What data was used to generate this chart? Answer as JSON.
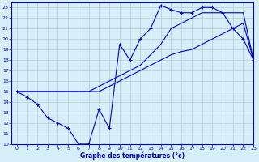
{
  "title": "Graphe des températures (°c)",
  "bg_color": "#d6eef8",
  "grid_color": "#b0ccd8",
  "line_color": "#0000cc",
  "xlim": [
    -0.5,
    23
  ],
  "ylim": [
    10,
    23.5
  ],
  "xticks": [
    0,
    1,
    2,
    3,
    4,
    5,
    6,
    7,
    8,
    9,
    10,
    11,
    12,
    13,
    14,
    15,
    16,
    17,
    18,
    19,
    20,
    21,
    22,
    23
  ],
  "yticks": [
    10,
    11,
    12,
    13,
    14,
    15,
    16,
    17,
    18,
    19,
    20,
    21,
    22,
    23
  ],
  "line1_x": [
    0,
    1,
    2,
    3,
    4,
    5,
    6,
    7,
    8,
    9,
    10,
    11,
    12,
    13,
    14,
    15,
    16,
    17,
    18,
    19,
    20,
    21,
    22,
    23
  ],
  "line1_y": [
    15,
    14.5,
    13.8,
    12.5,
    12,
    11.5,
    10,
    10,
    13.3,
    11.5,
    19.5,
    18.0,
    20,
    21,
    23.2,
    22.8,
    22.5,
    22.5,
    23,
    23,
    22.5,
    21,
    20,
    18
  ],
  "line2_x": [
    0,
    1,
    2,
    3,
    4,
    5,
    6,
    7,
    8,
    9,
    10,
    11,
    12,
    13,
    14,
    15,
    16,
    17,
    18,
    19,
    20,
    21,
    22,
    23
  ],
  "line2_y": [
    15,
    15,
    15,
    15,
    15,
    15,
    15,
    15,
    15,
    15.5,
    16,
    16.5,
    17,
    17.5,
    18,
    18.5,
    18.8,
    19,
    19.5,
    20,
    20.5,
    21,
    21.5,
    18
  ],
  "line3_x": [
    0,
    1,
    2,
    3,
    4,
    5,
    6,
    7,
    8,
    9,
    10,
    11,
    12,
    13,
    14,
    15,
    16,
    17,
    18,
    19,
    20,
    21,
    22,
    23
  ],
  "line3_y": [
    15,
    15,
    15,
    15,
    15,
    15,
    15,
    15,
    15.5,
    16,
    16.5,
    17,
    17.5,
    18.5,
    19.5,
    21,
    21.5,
    22,
    22.5,
    22.5,
    22.5,
    22.5,
    22.5,
    18
  ]
}
